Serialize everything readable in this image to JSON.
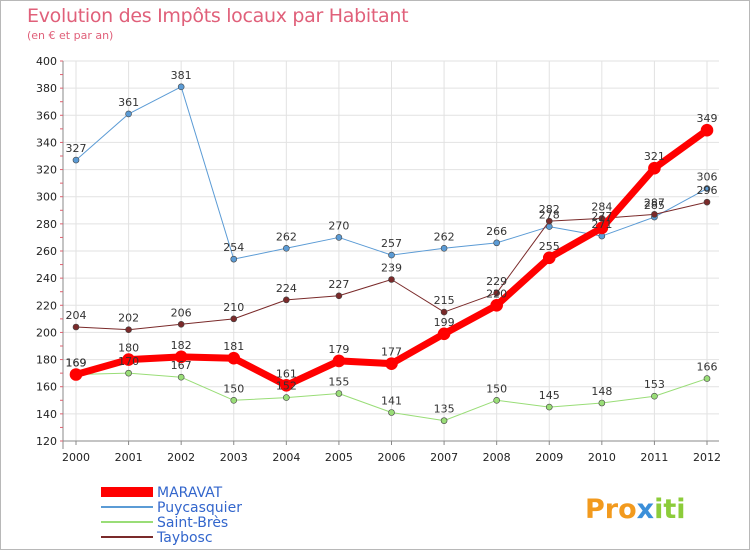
{
  "chart_data": {
    "type": "line",
    "title": "Evolution des Impôts locaux par Habitant",
    "subtitle": "(en € et par an)",
    "xlabel": "",
    "ylabel": "",
    "x": [
      2000,
      2001,
      2002,
      2003,
      2004,
      2005,
      2006,
      2007,
      2008,
      2009,
      2010,
      2011,
      2012
    ],
    "ylim": [
      120,
      400
    ],
    "yticks": [
      120,
      140,
      160,
      180,
      200,
      220,
      240,
      260,
      280,
      300,
      320,
      340,
      360,
      380,
      400
    ],
    "grid": true,
    "legend_position": "bottom-left",
    "series": [
      {
        "name": "Puycasquier",
        "color": "#5b9bd5",
        "width": 1,
        "marker": 3,
        "values": [
          327,
          361,
          381,
          254,
          262,
          270,
          257,
          262,
          266,
          278,
          271,
          285,
          306
        ]
      },
      {
        "name": "Saint-Brès",
        "color": "#99dd77",
        "width": 1,
        "marker": 3,
        "values": [
          169,
          170,
          167,
          150,
          152,
          155,
          141,
          135,
          150,
          145,
          148,
          153,
          166
        ]
      },
      {
        "name": "Taybosc",
        "color": "#7a2a2a",
        "width": 1,
        "marker": 3,
        "values": [
          204,
          202,
          206,
          210,
          224,
          227,
          239,
          215,
          229,
          282,
          284,
          287,
          296
        ]
      },
      {
        "name": "MARAVAT",
        "color": "#ff0000",
        "width": 7,
        "marker": 6,
        "values": [
          169,
          180,
          182,
          181,
          161,
          179,
          177,
          199,
          220,
          255,
          277,
          321,
          349
        ]
      }
    ],
    "legend_order": [
      "MARAVAT",
      "Puycasquier",
      "Saint-Brès",
      "Taybosc"
    ]
  },
  "logo": {
    "parts": [
      "Pro",
      "x",
      "iti"
    ],
    "colors": [
      "#f29a1e",
      "#3b8fd9",
      "#8ccc3a"
    ]
  }
}
